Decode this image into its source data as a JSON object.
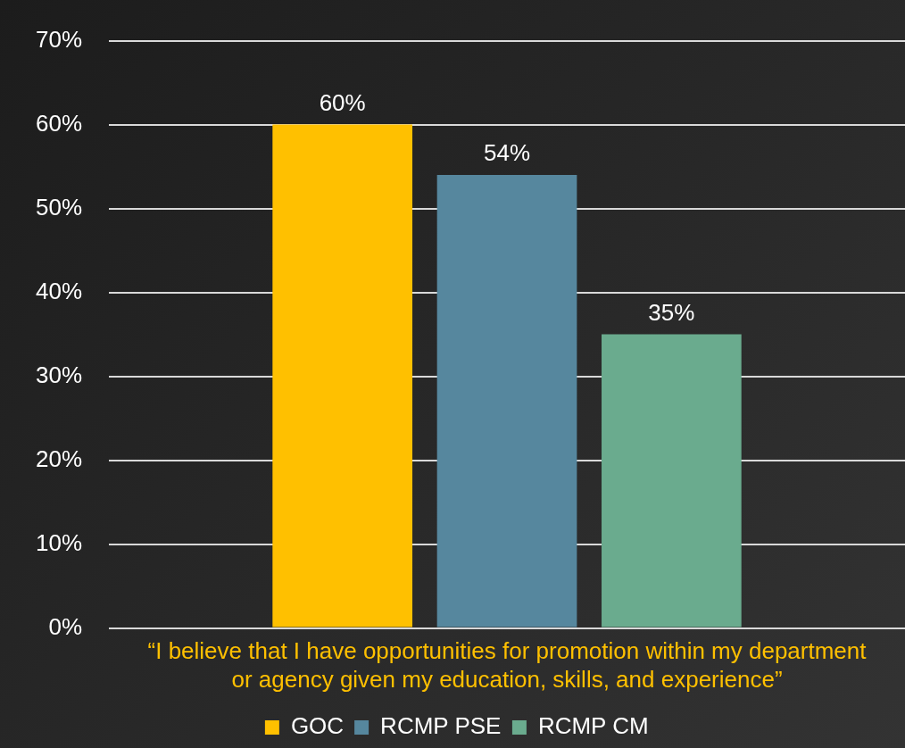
{
  "chart_data": {
    "type": "bar",
    "categories": [
      "“I believe that I have opportunities for promotion within my department or agency given my education, skills, and experience”"
    ],
    "series": [
      {
        "name": "GOC",
        "color": "#ffc000",
        "values": [
          60
        ]
      },
      {
        "name": "RCMP PSE",
        "color": "#56879e",
        "values": [
          54
        ]
      },
      {
        "name": "RCMP CM",
        "color": "#6aab8e",
        "values": [
          35
        ]
      }
    ],
    "ylim": [
      0,
      70
    ],
    "yticks": [
      {
        "value": 0,
        "label": "0%"
      },
      {
        "value": 10,
        "label": "10%"
      },
      {
        "value": 20,
        "label": "20%"
      },
      {
        "value": 30,
        "label": "30%"
      },
      {
        "value": 40,
        "label": "40%"
      },
      {
        "value": 50,
        "label": "50%"
      },
      {
        "value": 60,
        "label": "60%"
      },
      {
        "value": 70,
        "label": "70%"
      }
    ],
    "value_labels": [
      "60%",
      "54%",
      "35%"
    ],
    "grid": "y",
    "legend": "bottom"
  }
}
